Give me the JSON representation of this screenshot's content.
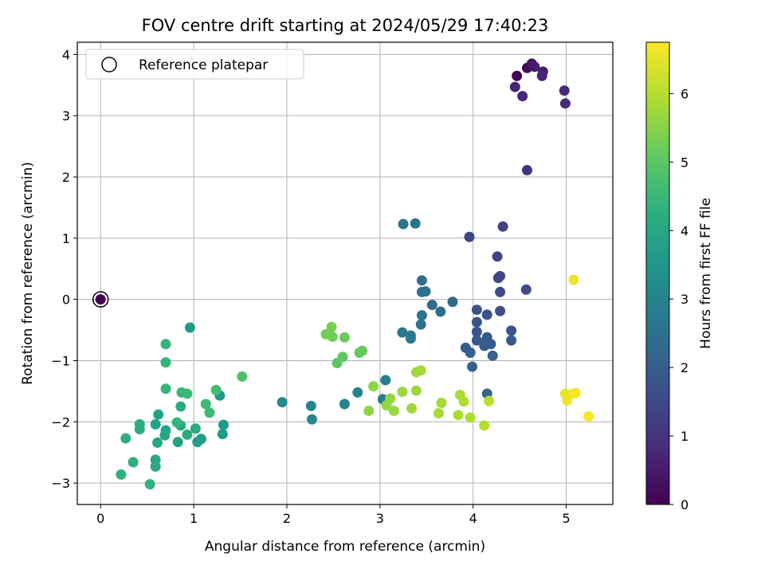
{
  "chart_data": {
    "type": "scatter",
    "title": "FOV centre drift starting at 2024/05/29 17:40:23",
    "xlabel": "Angular distance from reference (arcmin)",
    "ylabel": "Rotation from reference (arcmin)",
    "xlim": [
      -0.25,
      5.5
    ],
    "ylim": [
      -3.35,
      4.2
    ],
    "xticks": [
      0,
      1,
      2,
      3,
      4,
      5
    ],
    "xtick_labels": [
      "0",
      "1",
      "2",
      "3",
      "4",
      "5"
    ],
    "yticks": [
      -3,
      -2,
      -1,
      0,
      1,
      2,
      3,
      4
    ],
    "ytick_labels": [
      "−3",
      "−2",
      "−1",
      "0",
      "1",
      "2",
      "3",
      "4"
    ],
    "grid": true,
    "legend": {
      "placement": "top-left",
      "entries": [
        "Reference platepar"
      ]
    },
    "reference_point": {
      "x": 0,
      "y": 0,
      "hours": 0
    },
    "colorbar": {
      "label": "Hours from first FF file",
      "range": [
        0,
        6.75
      ],
      "ticks": [
        0,
        1,
        2,
        3,
        4,
        5,
        6
      ],
      "tick_labels": [
        "0",
        "1",
        "2",
        "3",
        "4",
        "5",
        "6"
      ],
      "colormap": "viridis"
    },
    "points": [
      {
        "x": 4.47,
        "y": 3.65,
        "h": 0.05
      },
      {
        "x": 4.58,
        "y": 3.78,
        "h": 0.2
      },
      {
        "x": 4.63,
        "y": 3.85,
        "h": 0.35
      },
      {
        "x": 4.66,
        "y": 3.8,
        "h": 0.5
      },
      {
        "x": 4.75,
        "y": 3.72,
        "h": 0.6
      },
      {
        "x": 4.74,
        "y": 3.65,
        "h": 0.7
      },
      {
        "x": 4.45,
        "y": 3.47,
        "h": 0.7
      },
      {
        "x": 4.53,
        "y": 3.32,
        "h": 0.75
      },
      {
        "x": 4.98,
        "y": 3.41,
        "h": 0.8
      },
      {
        "x": 4.99,
        "y": 3.2,
        "h": 0.85
      },
      {
        "x": 4.58,
        "y": 2.11,
        "h": 1.0
      },
      {
        "x": 3.96,
        "y": 1.02,
        "h": 1.4
      },
      {
        "x": 4.32,
        "y": 1.19,
        "h": 1.3
      },
      {
        "x": 4.26,
        "y": 0.7,
        "h": 1.4
      },
      {
        "x": 4.29,
        "y": 0.38,
        "h": 1.5
      },
      {
        "x": 4.27,
        "y": 0.35,
        "h": 1.45
      },
      {
        "x": 4.29,
        "y": 0.12,
        "h": 1.5
      },
      {
        "x": 4.57,
        "y": 0.16,
        "h": 1.55
      },
      {
        "x": 4.29,
        "y": -0.19,
        "h": 1.6
      },
      {
        "x": 4.04,
        "y": -0.17,
        "h": 1.7
      },
      {
        "x": 4.15,
        "y": -0.25,
        "h": 1.7
      },
      {
        "x": 4.04,
        "y": -0.37,
        "h": 1.75
      },
      {
        "x": 4.41,
        "y": -0.51,
        "h": 1.75
      },
      {
        "x": 4.04,
        "y": -0.53,
        "h": 1.8
      },
      {
        "x": 4.15,
        "y": -0.62,
        "h": 1.85
      },
      {
        "x": 4.41,
        "y": -0.67,
        "h": 1.9
      },
      {
        "x": 4.04,
        "y": -0.67,
        "h": 1.85
      },
      {
        "x": 4.12,
        "y": -0.71,
        "h": 1.9
      },
      {
        "x": 4.19,
        "y": -0.73,
        "h": 1.95
      },
      {
        "x": 4.12,
        "y": -0.76,
        "h": 2.0
      },
      {
        "x": 3.92,
        "y": -0.79,
        "h": 2.0
      },
      {
        "x": 3.97,
        "y": -0.87,
        "h": 2.05
      },
      {
        "x": 4.21,
        "y": -0.92,
        "h": 2.1
      },
      {
        "x": 3.99,
        "y": -1.1,
        "h": 2.1
      },
      {
        "x": 4.15,
        "y": -1.54,
        "h": 2.2
      },
      {
        "x": 3.78,
        "y": -0.04,
        "h": 2.3
      },
      {
        "x": 3.56,
        "y": -0.09,
        "h": 2.35
      },
      {
        "x": 3.65,
        "y": -0.2,
        "h": 2.4
      },
      {
        "x": 3.45,
        "y": 0.31,
        "h": 2.45
      },
      {
        "x": 3.49,
        "y": 0.13,
        "h": 2.5
      },
      {
        "x": 3.45,
        "y": 0.12,
        "h": 2.5
      },
      {
        "x": 3.45,
        "y": -0.26,
        "h": 2.55
      },
      {
        "x": 3.44,
        "y": -0.41,
        "h": 2.6
      },
      {
        "x": 3.24,
        "y": -0.54,
        "h": 2.65
      },
      {
        "x": 3.33,
        "y": -0.59,
        "h": 2.7
      },
      {
        "x": 3.33,
        "y": -0.64,
        "h": 2.75
      },
      {
        "x": 3.25,
        "y": 1.23,
        "h": 2.6
      },
      {
        "x": 3.38,
        "y": 1.24,
        "h": 2.55
      },
      {
        "x": 3.06,
        "y": -1.32,
        "h": 2.85
      },
      {
        "x": 3.03,
        "y": -1.63,
        "h": 2.9
      },
      {
        "x": 2.76,
        "y": -1.52,
        "h": 3.0
      },
      {
        "x": 2.62,
        "y": -1.71,
        "h": 3.05
      },
      {
        "x": 2.26,
        "y": -1.74,
        "h": 3.1
      },
      {
        "x": 2.27,
        "y": -1.96,
        "h": 3.15
      },
      {
        "x": 1.95,
        "y": -1.68,
        "h": 3.2
      },
      {
        "x": 0.96,
        "y": -0.46,
        "h": 3.7
      },
      {
        "x": 1.28,
        "y": -1.57,
        "h": 3.6
      },
      {
        "x": 1.32,
        "y": -2.05,
        "h": 3.65
      },
      {
        "x": 1.31,
        "y": -2.2,
        "h": 3.7
      },
      {
        "x": 1.08,
        "y": -2.28,
        "h": 3.75
      },
      {
        "x": 1.04,
        "y": -2.33,
        "h": 3.8
      },
      {
        "x": 0.83,
        "y": -2.33,
        "h": 3.85
      },
      {
        "x": 0.59,
        "y": -2.04,
        "h": 3.9
      },
      {
        "x": 0.62,
        "y": -1.88,
        "h": 3.9
      },
      {
        "x": 0.7,
        "y": -2.14,
        "h": 3.95
      },
      {
        "x": 0.69,
        "y": -2.22,
        "h": 4.0
      },
      {
        "x": 0.61,
        "y": -2.34,
        "h": 4.0
      },
      {
        "x": 0.59,
        "y": -2.62,
        "h": 4.05
      },
      {
        "x": 0.59,
        "y": -2.73,
        "h": 4.05
      },
      {
        "x": 0.86,
        "y": -1.75,
        "h": 4.1
      },
      {
        "x": 0.86,
        "y": -2.06,
        "h": 4.1
      },
      {
        "x": 1.02,
        "y": -2.11,
        "h": 4.15
      },
      {
        "x": 0.93,
        "y": -2.21,
        "h": 4.15
      },
      {
        "x": 0.42,
        "y": -2.04,
        "h": 4.2
      },
      {
        "x": 0.42,
        "y": -2.12,
        "h": 4.2
      },
      {
        "x": 0.27,
        "y": -2.27,
        "h": 4.25
      },
      {
        "x": 0.35,
        "y": -2.66,
        "h": 4.3
      },
      {
        "x": 0.22,
        "y": -2.86,
        "h": 4.35
      },
      {
        "x": 0.53,
        "y": -3.02,
        "h": 4.35
      },
      {
        "x": 0.7,
        "y": -0.73,
        "h": 4.45
      },
      {
        "x": 0.7,
        "y": -1.03,
        "h": 4.45
      },
      {
        "x": 0.7,
        "y": -1.46,
        "h": 4.5
      },
      {
        "x": 0.87,
        "y": -1.52,
        "h": 4.55
      },
      {
        "x": 0.93,
        "y": -1.54,
        "h": 4.55
      },
      {
        "x": 1.13,
        "y": -1.71,
        "h": 4.6
      },
      {
        "x": 1.17,
        "y": -1.85,
        "h": 4.6
      },
      {
        "x": 1.24,
        "y": -1.48,
        "h": 4.65
      },
      {
        "x": 0.82,
        "y": -2.01,
        "h": 4.5
      },
      {
        "x": 1.52,
        "y": -1.26,
        "h": 4.85
      },
      {
        "x": 2.54,
        "y": -1.04,
        "h": 5.0
      },
      {
        "x": 2.6,
        "y": -0.94,
        "h": 5.05
      },
      {
        "x": 2.78,
        "y": -0.87,
        "h": 5.1
      },
      {
        "x": 2.81,
        "y": -0.84,
        "h": 5.15
      },
      {
        "x": 2.62,
        "y": -0.62,
        "h": 5.2
      },
      {
        "x": 2.49,
        "y": -0.61,
        "h": 5.25
      },
      {
        "x": 2.42,
        "y": -0.57,
        "h": 5.3
      },
      {
        "x": 2.48,
        "y": -0.45,
        "h": 5.35
      },
      {
        "x": 2.88,
        "y": -1.82,
        "h": 5.6
      },
      {
        "x": 2.93,
        "y": -1.42,
        "h": 5.6
      },
      {
        "x": 3.07,
        "y": -1.73,
        "h": 5.65
      },
      {
        "x": 3.11,
        "y": -1.62,
        "h": 5.65
      },
      {
        "x": 3.15,
        "y": -1.82,
        "h": 5.7
      },
      {
        "x": 3.24,
        "y": -1.51,
        "h": 5.7
      },
      {
        "x": 3.34,
        "y": -1.78,
        "h": 5.75
      },
      {
        "x": 3.39,
        "y": -1.49,
        "h": 5.75
      },
      {
        "x": 3.39,
        "y": -1.19,
        "h": 5.8
      },
      {
        "x": 3.44,
        "y": -1.16,
        "h": 5.8
      },
      {
        "x": 3.63,
        "y": -1.86,
        "h": 5.85
      },
      {
        "x": 3.66,
        "y": -1.69,
        "h": 5.85
      },
      {
        "x": 3.84,
        "y": -1.89,
        "h": 5.9
      },
      {
        "x": 3.86,
        "y": -1.56,
        "h": 5.9
      },
      {
        "x": 3.9,
        "y": -1.67,
        "h": 5.95
      },
      {
        "x": 3.97,
        "y": -1.93,
        "h": 5.95
      },
      {
        "x": 4.12,
        "y": -2.06,
        "h": 6.0
      },
      {
        "x": 4.17,
        "y": -1.66,
        "h": 6.05
      },
      {
        "x": 5.08,
        "y": 0.32,
        "h": 6.55
      },
      {
        "x": 4.99,
        "y": -1.54,
        "h": 6.5
      },
      {
        "x": 5.01,
        "y": -1.65,
        "h": 6.55
      },
      {
        "x": 5.07,
        "y": -1.54,
        "h": 6.6
      },
      {
        "x": 5.1,
        "y": -1.53,
        "h": 6.65
      },
      {
        "x": 5.24,
        "y": -1.91,
        "h": 6.7
      }
    ]
  }
}
